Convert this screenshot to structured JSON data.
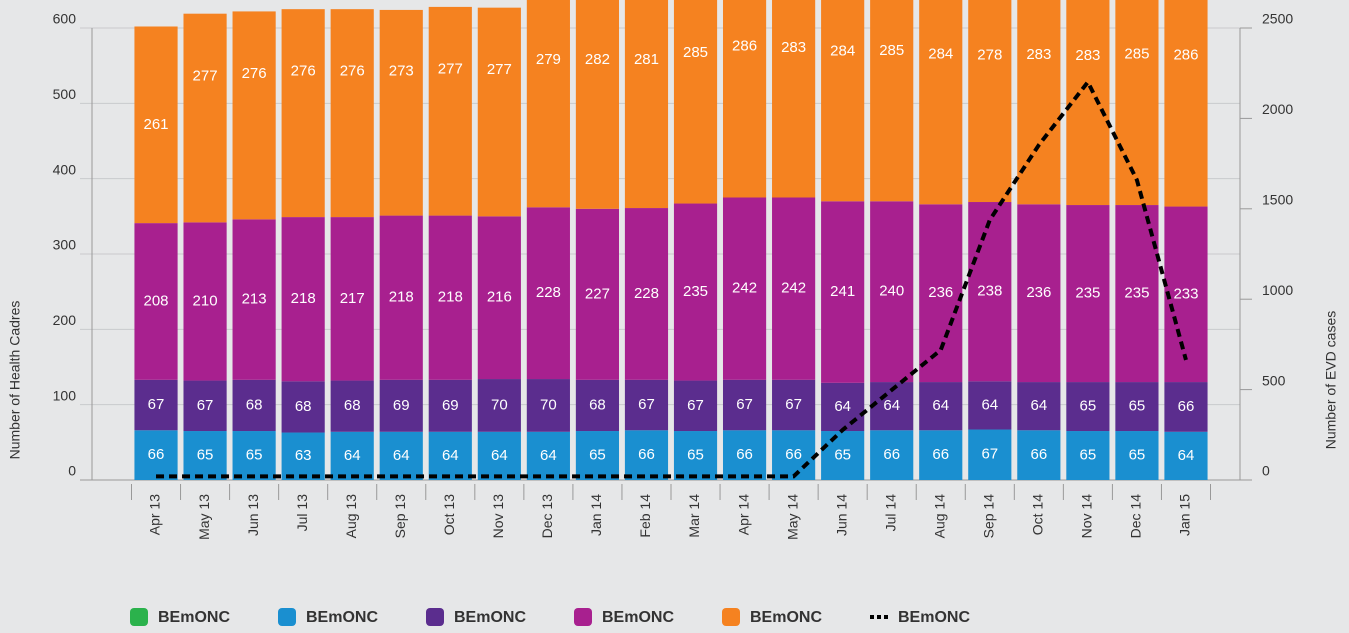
{
  "chart_data": {
    "type": "bar",
    "stacked": true,
    "y_label": "Number of Health Cadres",
    "y2_label": "Number of EVD cases",
    "categories": [
      "Apr 13",
      "May 13",
      "Jun 13",
      "Jul 13",
      "Aug 13",
      "Sep 13",
      "Oct 13",
      "Nov 13",
      "Dec 13",
      "Jan 14",
      "Feb 14",
      "Mar 14",
      "Apr 14",
      "May 14",
      "Jun 14",
      "Jul 14",
      "Aug 14",
      "Sep 14",
      "Oct 14",
      "Nov 14",
      "Dec 14",
      "Jan 15"
    ],
    "ylim": [
      0,
      600
    ],
    "yticks": [
      0,
      100,
      200,
      300,
      400,
      500,
      600
    ],
    "y2lim": [
      0,
      2500
    ],
    "y2ticks": [
      0,
      500,
      1000,
      1500,
      2000,
      2500
    ],
    "grid": true,
    "legend": "bottom",
    "series": [
      {
        "name": "BEmONC",
        "color": "#2bb24c",
        "values": [
          null,
          null,
          null,
          null,
          null,
          null,
          null,
          null,
          null,
          null,
          null,
          null,
          null,
          null,
          null,
          null,
          null,
          null,
          null,
          null,
          null,
          null
        ]
      },
      {
        "name": "BEmONC",
        "color": "#1a8fd0",
        "values": [
          66,
          65,
          65,
          63,
          64,
          64,
          64,
          64,
          64,
          65,
          66,
          65,
          66,
          66,
          65,
          66,
          66,
          67,
          66,
          65,
          65,
          64
        ]
      },
      {
        "name": "BEmONC",
        "color": "#5b2d8e",
        "values": [
          67,
          67,
          68,
          68,
          68,
          69,
          69,
          70,
          70,
          68,
          67,
          67,
          67,
          67,
          64,
          64,
          64,
          64,
          64,
          65,
          65,
          66
        ]
      },
      {
        "name": "BEmONC",
        "color": "#a8208f",
        "values": [
          208,
          210,
          213,
          218,
          217,
          218,
          218,
          216,
          228,
          227,
          228,
          235,
          242,
          242,
          241,
          240,
          236,
          238,
          236,
          235,
          235,
          233
        ]
      },
      {
        "name": "BEmONC",
        "color": "#f58220",
        "values": [
          261,
          277,
          276,
          276,
          276,
          273,
          277,
          277,
          279,
          282,
          281,
          285,
          286,
          283,
          284,
          285,
          284,
          278,
          283,
          283,
          285,
          286
        ]
      },
      {
        "name": "BEmONC",
        "color": "#000000",
        "type": "line",
        "dashed": true,
        "axis": "y2",
        "values": [
          20,
          20,
          20,
          20,
          20,
          20,
          20,
          20,
          20,
          20,
          20,
          20,
          20,
          20,
          277,
          498,
          719,
          1438,
          1853,
          2201,
          1659,
          664
        ]
      }
    ]
  }
}
